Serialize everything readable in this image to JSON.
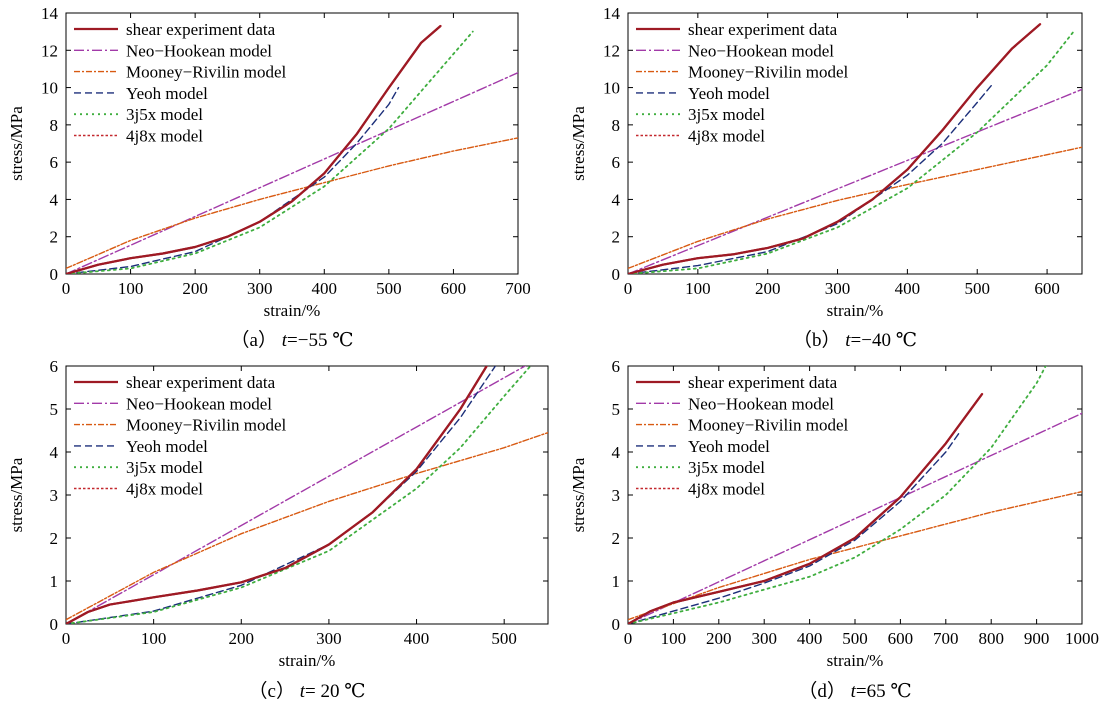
{
  "legend_styles": [
    {
      "color": "#9e1a24",
      "dash": "",
      "width": 2.2
    },
    {
      "color": "#a23aa8",
      "dash": "10,3,2,3",
      "width": 1.4
    },
    {
      "color": "#d85a12",
      "dash": "6,2,2,2",
      "width": 1.4
    },
    {
      "color": "#1c2f7a",
      "dash": "7,4",
      "width": 1.4
    },
    {
      "color": "#3fae3f",
      "dash": "2,4",
      "width": 1.8
    },
    {
      "color": "#c3282e",
      "dash": "2.5,2",
      "width": 1.4
    }
  ],
  "chart_data": [
    {
      "type": "line",
      "caption": {
        "label": "（a）",
        "t": "t",
        "value": "=−55 ℃"
      },
      "xlabel": "strain/%",
      "ylabel": "stress/MPa",
      "xlim": [
        0,
        700
      ],
      "ylim": [
        0,
        14
      ],
      "xticks": [
        0,
        100,
        200,
        300,
        400,
        500,
        600,
        700
      ],
      "yticks": [
        0,
        2,
        4,
        6,
        8,
        10,
        12,
        14
      ],
      "legend_position": "top-left",
      "series": [
        {
          "name": "shear experiment data",
          "x": [
            0,
            50,
            100,
            150,
            200,
            250,
            300,
            350,
            400,
            450,
            500,
            550,
            580
          ],
          "y": [
            0,
            0.5,
            0.85,
            1.1,
            1.45,
            2.0,
            2.8,
            3.9,
            5.4,
            7.5,
            10.0,
            12.4,
            13.3
          ]
        },
        {
          "name": "Neo−Hookean model",
          "x": [
            0,
            700
          ],
          "y": [
            0,
            10.8
          ]
        },
        {
          "name": "Mooney−Rivilin model",
          "x": [
            0,
            100,
            200,
            300,
            400,
            500,
            600,
            700
          ],
          "y": [
            0.3,
            1.8,
            3.0,
            4.0,
            4.9,
            5.8,
            6.6,
            7.3
          ]
        },
        {
          "name": "Yeoh model",
          "x": [
            0,
            100,
            200,
            300,
            400,
            450,
            500,
            515
          ],
          "y": [
            0,
            0.4,
            1.2,
            2.8,
            5.2,
            7.0,
            9.1,
            10.0
          ]
        },
        {
          "name": "3j5x model",
          "x": [
            0,
            100,
            200,
            300,
            400,
            500,
            550,
            600,
            630
          ],
          "y": [
            0,
            0.3,
            1.1,
            2.5,
            4.7,
            7.8,
            9.8,
            11.8,
            13.0
          ]
        },
        {
          "name": "4j8x model",
          "x": [
            0,
            50,
            100,
            150,
            200,
            250,
            300,
            350,
            400,
            450,
            500,
            550,
            580
          ],
          "y": [
            0,
            0.5,
            0.85,
            1.1,
            1.45,
            2.0,
            2.8,
            3.9,
            5.4,
            7.5,
            10.0,
            12.4,
            13.3
          ]
        }
      ]
    },
    {
      "type": "line",
      "caption": {
        "label": "（b）",
        "t": "t",
        "value": "=−40 ℃"
      },
      "xlabel": "strain/%",
      "ylabel": "stress/MPa",
      "xlim": [
        0,
        650
      ],
      "ylim": [
        0,
        14
      ],
      "xticks": [
        0,
        100,
        200,
        300,
        400,
        500,
        600
      ],
      "yticks": [
        0,
        2,
        4,
        6,
        8,
        10,
        12,
        14
      ],
      "legend_position": "top-left",
      "series": [
        {
          "name": "shear experiment data",
          "x": [
            0,
            50,
            100,
            150,
            200,
            250,
            300,
            350,
            400,
            450,
            500,
            550,
            590
          ],
          "y": [
            0,
            0.5,
            0.85,
            1.05,
            1.4,
            1.9,
            2.8,
            4.0,
            5.6,
            7.7,
            10.0,
            12.1,
            13.4
          ]
        },
        {
          "name": "Neo−Hookean model",
          "x": [
            0,
            650
          ],
          "y": [
            0,
            9.9
          ]
        },
        {
          "name": "Mooney−Rivilin model",
          "x": [
            0,
            100,
            200,
            300,
            400,
            500,
            600,
            650
          ],
          "y": [
            0.3,
            1.75,
            2.95,
            3.95,
            4.8,
            5.6,
            6.4,
            6.8
          ]
        },
        {
          "name": "Yeoh model",
          "x": [
            0,
            100,
            200,
            300,
            400,
            450,
            500,
            520
          ],
          "y": [
            0,
            0.45,
            1.2,
            2.7,
            5.3,
            7.0,
            9.2,
            10.1
          ]
        },
        {
          "name": "3j5x model",
          "x": [
            0,
            100,
            200,
            300,
            400,
            500,
            550,
            600,
            640
          ],
          "y": [
            0,
            0.3,
            1.1,
            2.5,
            4.6,
            7.6,
            9.4,
            11.2,
            13.1
          ]
        },
        {
          "name": "4j8x model",
          "x": [
            0,
            50,
            100,
            150,
            200,
            250,
            300,
            350,
            400,
            450,
            500,
            550,
            590
          ],
          "y": [
            0,
            0.5,
            0.85,
            1.05,
            1.4,
            1.9,
            2.8,
            4.0,
            5.6,
            7.7,
            10.0,
            12.1,
            13.4
          ]
        }
      ]
    },
    {
      "type": "line",
      "caption": {
        "label": "（c）",
        "t": "t",
        "value": "= 20 ℃"
      },
      "xlabel": "strain/%",
      "ylabel": "stress/MPa",
      "xlim": [
        0,
        550
      ],
      "ylim": [
        0,
        6
      ],
      "xticks": [
        0,
        100,
        200,
        300,
        400,
        500
      ],
      "yticks": [
        0,
        1,
        2,
        3,
        4,
        5,
        6
      ],
      "legend_position": "top-left",
      "series": [
        {
          "name": "shear experiment data",
          "x": [
            0,
            25,
            50,
            100,
            150,
            200,
            250,
            300,
            350,
            400,
            450,
            480
          ],
          "y": [
            0,
            0.28,
            0.45,
            0.62,
            0.78,
            0.97,
            1.3,
            1.85,
            2.6,
            3.6,
            5.0,
            6.0
          ]
        },
        {
          "name": "Neo−Hookean model",
          "x": [
            0,
            550
          ],
          "y": [
            0,
            6.3
          ]
        },
        {
          "name": "Mooney−Rivilin model",
          "x": [
            0,
            100,
            200,
            300,
            400,
            500,
            550
          ],
          "y": [
            0.1,
            1.2,
            2.1,
            2.85,
            3.5,
            4.1,
            4.45
          ]
        },
        {
          "name": "Yeoh model",
          "x": [
            0,
            100,
            200,
            300,
            350,
            400,
            450,
            490
          ],
          "y": [
            0,
            0.3,
            0.9,
            1.85,
            2.6,
            3.55,
            4.8,
            6.0
          ]
        },
        {
          "name": "3j5x model",
          "x": [
            0,
            100,
            200,
            300,
            400,
            450,
            500,
            530
          ],
          "y": [
            0,
            0.28,
            0.85,
            1.7,
            3.15,
            4.1,
            5.3,
            6.0
          ]
        },
        {
          "name": "4j8x model",
          "x": [
            0,
            25,
            50,
            100,
            150,
            200,
            250,
            300,
            350,
            400,
            450,
            480
          ],
          "y": [
            0,
            0.28,
            0.45,
            0.62,
            0.78,
            0.97,
            1.3,
            1.85,
            2.6,
            3.6,
            5.0,
            6.0
          ]
        }
      ]
    },
    {
      "type": "line",
      "caption": {
        "label": "（d）",
        "t": "t",
        "value": "=65 ℃"
      },
      "xlabel": "strain/%",
      "ylabel": "stress/MPa",
      "xlim": [
        0,
        1000
      ],
      "ylim": [
        0,
        6
      ],
      "xticks": [
        0,
        100,
        200,
        300,
        400,
        500,
        600,
        700,
        800,
        900,
        1000
      ],
      "yticks": [
        0,
        1,
        2,
        3,
        4,
        5,
        6
      ],
      "legend_position": "top-left",
      "series": [
        {
          "name": "shear experiment data",
          "x": [
            0,
            50,
            100,
            200,
            300,
            400,
            500,
            600,
            700,
            780
          ],
          "y": [
            0,
            0.3,
            0.5,
            0.75,
            1.0,
            1.4,
            2.0,
            2.95,
            4.2,
            5.35
          ]
        },
        {
          "name": "Neo−Hookean model",
          "x": [
            0,
            1000
          ],
          "y": [
            0,
            4.9
          ]
        },
        {
          "name": "Mooney−Rivilin model",
          "x": [
            0,
            200,
            400,
            600,
            800,
            1000
          ],
          "y": [
            0.1,
            0.85,
            1.5,
            2.05,
            2.6,
            3.08
          ]
        },
        {
          "name": "Yeoh model",
          "x": [
            0,
            100,
            200,
            300,
            400,
            500,
            600,
            700,
            730
          ],
          "y": [
            0,
            0.3,
            0.6,
            0.95,
            1.35,
            1.95,
            2.85,
            4.0,
            4.45
          ]
        },
        {
          "name": "3j5x model",
          "x": [
            0,
            200,
            400,
            500,
            600,
            700,
            800,
            900,
            920
          ],
          "y": [
            0,
            0.5,
            1.1,
            1.55,
            2.2,
            3.0,
            4.1,
            5.6,
            6.0
          ]
        },
        {
          "name": "4j8x model",
          "x": [
            0,
            50,
            100,
            200,
            300,
            400,
            500,
            600,
            700,
            780
          ],
          "y": [
            0,
            0.3,
            0.5,
            0.75,
            1.0,
            1.4,
            2.0,
            2.95,
            4.2,
            5.35
          ]
        }
      ]
    }
  ]
}
